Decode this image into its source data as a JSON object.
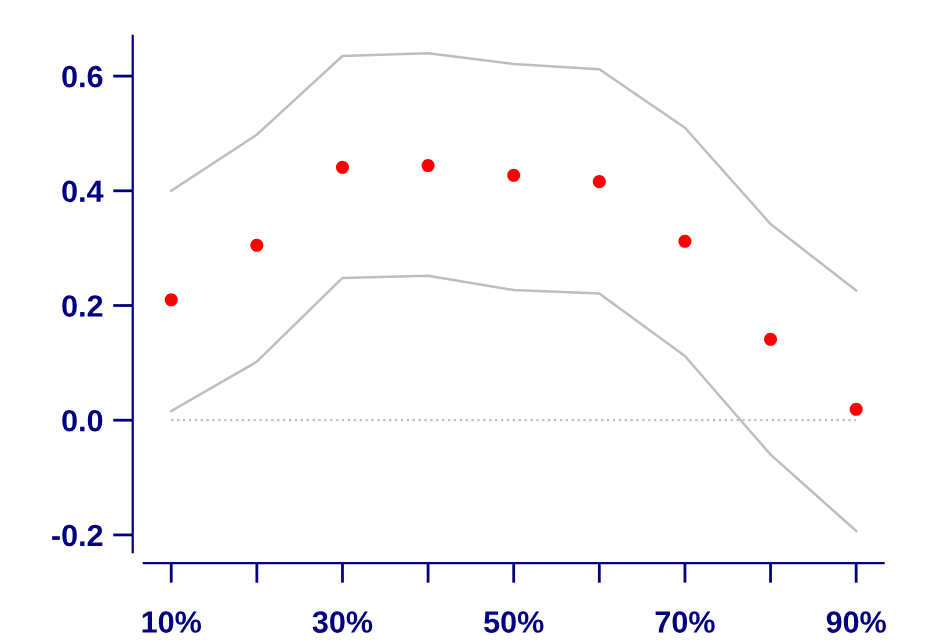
{
  "chart_data": {
    "type": "scatter",
    "x": [
      10,
      20,
      30,
      40,
      50,
      60,
      70,
      80,
      90
    ],
    "series": [
      {
        "color": "#ff0000",
        "marker": "circle",
        "values": [
          0.21,
          0.305,
          0.441,
          0.444,
          0.427,
          0.416,
          0.312,
          0.141,
          0.019
        ]
      },
      {
        "type": "line",
        "color": "#bebebe",
        "marker": "none",
        "line_style": "solid",
        "values": [
          0.4,
          0.498,
          0.635,
          0.64,
          0.621,
          0.612,
          0.51,
          0.342,
          0.226
        ]
      },
      {
        "type": "line",
        "color": "#bebebe",
        "marker": "none",
        "line_style": "solid",
        "values": [
          0.016,
          0.102,
          0.248,
          0.252,
          0.227,
          0.221,
          0.112,
          -0.06,
          -0.193
        ]
      }
    ],
    "xlim": [
      6.8,
      93.2
    ],
    "xticks": [
      {
        "value": 10,
        "label": "10%"
      },
      {
        "value": 20,
        "label": null
      },
      {
        "value": 30,
        "label": "30%"
      },
      {
        "value": 40,
        "label": null
      },
      {
        "value": 50,
        "label": "50%"
      },
      {
        "value": 60,
        "label": null
      },
      {
        "value": 70,
        "label": "70%"
      },
      {
        "value": 80,
        "label": null
      },
      {
        "value": 90,
        "label": "90%"
      }
    ],
    "ylim": [
      -0.23,
      0.67
    ],
    "yticks": [
      {
        "value": -0.2,
        "label": "-0.2"
      },
      {
        "value": 0.0,
        "label": "0.0"
      },
      {
        "value": 0.2,
        "label": "0.2"
      },
      {
        "value": 0.4,
        "label": "0.4"
      },
      {
        "value": 0.6,
        "label": "0.6"
      }
    ],
    "ref_lines": [
      {
        "axis": "y",
        "value": 0,
        "color": "#bebebe",
        "line_style": "dotted"
      }
    ],
    "grid": false,
    "legend": false
  }
}
